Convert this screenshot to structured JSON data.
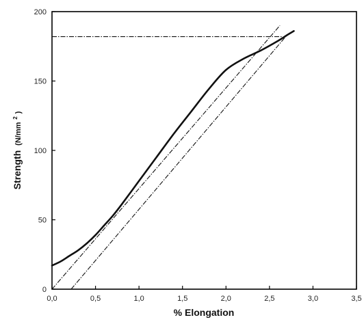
{
  "chart_data": {
    "type": "line",
    "title": "",
    "xlabel": "% Elongation",
    "ylabel": "Strength",
    "ylabel_unit": "(N/mm",
    "ylabel_unit_sup": "2",
    "ylabel_unit_close": ")",
    "xlim": [
      0,
      3.5
    ],
    "ylim": [
      0,
      200
    ],
    "xticks": [
      {
        "value": 0,
        "label": "0,0"
      },
      {
        "value": 0.5,
        "label": "0,5"
      },
      {
        "value": 1.0,
        "label": "1,0"
      },
      {
        "value": 1.5,
        "label": "1,5"
      },
      {
        "value": 2.0,
        "label": "2,0"
      },
      {
        "value": 2.5,
        "label": "2,5"
      },
      {
        "value": 3.0,
        "label": "3,0"
      },
      {
        "value": 3.5,
        "label": "3,5"
      }
    ],
    "yticks": [
      {
        "value": 0,
        "label": "0"
      },
      {
        "value": 50,
        "label": "50"
      },
      {
        "value": 100,
        "label": "100"
      },
      {
        "value": 150,
        "label": "150"
      },
      {
        "value": 200,
        "label": "200"
      }
    ],
    "grid": false,
    "legend": "none",
    "series": [
      {
        "style": "solid",
        "x": [
          0.0,
          0.1,
          0.2,
          0.3,
          0.4,
          0.5,
          0.6,
          0.7,
          0.8,
          1.0,
          1.2,
          1.4,
          1.6,
          1.8,
          2.0,
          2.2,
          2.4,
          2.6,
          2.7,
          2.78
        ],
        "y": [
          17,
          20,
          24,
          28,
          33,
          39,
          46,
          53,
          61,
          78,
          95,
          112,
          128,
          144,
          158,
          166,
          172,
          179,
          183,
          186
        ]
      },
      {
        "style": "dash-dot",
        "x": [
          0.0,
          2.62
        ],
        "y": [
          0,
          190
        ]
      },
      {
        "style": "dash-dot",
        "x": [
          0.22,
          2.7
        ],
        "y": [
          0,
          183
        ]
      },
      {
        "style": "dash-dot",
        "x": [
          0.0,
          2.65
        ],
        "y": [
          182,
          182
        ]
      }
    ]
  }
}
